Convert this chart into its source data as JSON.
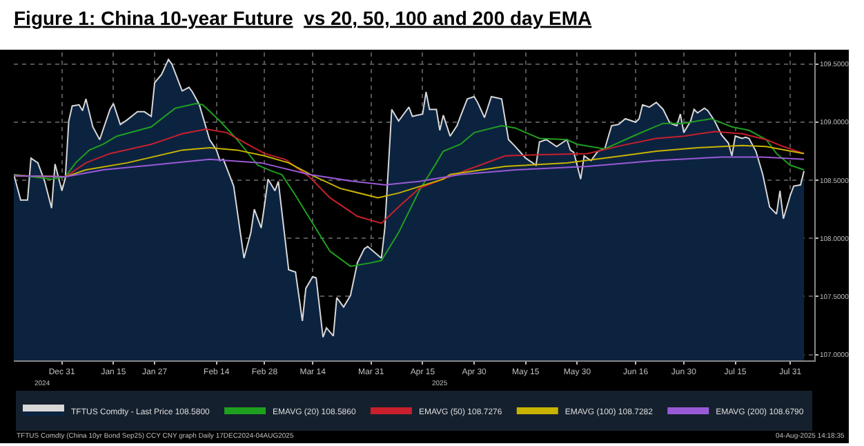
{
  "chart_data": {
    "type": "line",
    "title": "Figure 1: China 10-year Future  vs 20, 50, 100 and 200 day EMA",
    "annotations": [
      "2024",
      "2025",
      "TFTUS Comdty (China 10yr Bond Sep25) CCY CNY graph Daily 17DEC2024-04AUG2025",
      "04-Aug-2025 14:18:35"
    ],
    "xlim": [
      "2024-12-17",
      "2025-08-07"
    ],
    "xticks": [
      {
        "value": "2024-12-31",
        "label": "Dec 31"
      },
      {
        "value": "2025-01-15",
        "label": "Jan 15"
      },
      {
        "value": "2025-01-27",
        "label": "Jan 27"
      },
      {
        "value": "2025-02-14",
        "label": "Feb 14"
      },
      {
        "value": "2025-02-28",
        "label": "Feb 28"
      },
      {
        "value": "2025-03-14",
        "label": "Mar 14"
      },
      {
        "value": "2025-03-31",
        "label": "Mar 31"
      },
      {
        "value": "2025-04-15",
        "label": "Apr 15"
      },
      {
        "value": "2025-04-30",
        "label": "Apr 30"
      },
      {
        "value": "2025-05-15",
        "label": "May 15"
      },
      {
        "value": "2025-05-30",
        "label": "May 30"
      },
      {
        "value": "2025-06-16",
        "label": "Jun 16"
      },
      {
        "value": "2025-06-30",
        "label": "Jun 30"
      },
      {
        "value": "2025-07-15",
        "label": "Jul 15"
      },
      {
        "value": "2025-07-31",
        "label": "Jul 31"
      }
    ],
    "ylim": [
      106.95,
      109.6
    ],
    "yticks": [
      {
        "value": 107,
        "label": "107.0000"
      },
      {
        "value": 107.5,
        "label": "107.5000"
      },
      {
        "value": 108,
        "label": "108.0000"
      },
      {
        "value": 108.5,
        "label": "108.5000"
      },
      {
        "value": 109,
        "label": "109.0000"
      },
      {
        "value": 109.5,
        "label": "109.5000"
      }
    ],
    "grid": true,
    "legend": "bottom",
    "marker": "none",
    "line_style": "solid",
    "series": [
      {
        "name": "TFTUS Comdty - Last Price 108.5800",
        "type": "area",
        "color": "#d8d8d8",
        "x": [
          "2024-12-17",
          "2024-12-19",
          "2024-12-21",
          "2024-12-22",
          "2024-12-24",
          "2024-12-26",
          "2024-12-28",
          "2024-12-29",
          "2024-12-31",
          "2025-01-01",
          "2025-01-02",
          "2025-01-03",
          "2025-01-05",
          "2025-01-06",
          "2025-01-07",
          "2025-01-09",
          "2025-01-11",
          "2025-01-14",
          "2025-01-15",
          "2025-01-17",
          "2025-01-19",
          "2025-01-22",
          "2025-01-24",
          "2025-01-26",
          "2025-01-27",
          "2025-01-29",
          "2025-01-31",
          "2025-02-01",
          "2025-02-04",
          "2025-02-06",
          "2025-02-07",
          "2025-02-09",
          "2025-02-12",
          "2025-02-14",
          "2025-02-15",
          "2025-02-16",
          "2025-02-19",
          "2025-02-22",
          "2025-02-24",
          "2025-02-25",
          "2025-02-27",
          "2025-02-28",
          "2025-03-01",
          "2025-03-03",
          "2025-03-04",
          "2025-03-07",
          "2025-03-09",
          "2025-03-11",
          "2025-03-12",
          "2025-03-14",
          "2025-03-15",
          "2025-03-17",
          "2025-03-18",
          "2025-03-20",
          "2025-03-21",
          "2025-03-23",
          "2025-03-25",
          "2025-03-27",
          "2025-03-29",
          "2025-03-30",
          "2025-04-01",
          "2025-04-03",
          "2025-04-04",
          "2025-04-06",
          "2025-04-08",
          "2025-04-11",
          "2025-04-12",
          "2025-04-15",
          "2025-04-16",
          "2025-04-17",
          "2025-04-19",
          "2025-04-20",
          "2025-04-21",
          "2025-04-23",
          "2025-04-25",
          "2025-04-26",
          "2025-04-28",
          "2025-04-30",
          "2025-05-01",
          "2025-05-03",
          "2025-05-05",
          "2025-05-08",
          "2025-05-10",
          "2025-05-12",
          "2025-05-15",
          "2025-05-18",
          "2025-05-19",
          "2025-05-21",
          "2025-05-24",
          "2025-05-27",
          "2025-05-28",
          "2025-05-29",
          "2025-05-31",
          "2025-06-01",
          "2025-06-03",
          "2025-06-05",
          "2025-06-07",
          "2025-06-09",
          "2025-06-11",
          "2025-06-13",
          "2025-06-16",
          "2025-06-17",
          "2025-06-18",
          "2025-06-20",
          "2025-06-22",
          "2025-06-24",
          "2025-06-26",
          "2025-06-28",
          "2025-06-29",
          "2025-06-30",
          "2025-07-02",
          "2025-07-03",
          "2025-07-04",
          "2025-07-06",
          "2025-07-07",
          "2025-07-09",
          "2025-07-11",
          "2025-07-13",
          "2025-07-14",
          "2025-07-15",
          "2025-07-17",
          "2025-07-18",
          "2025-07-19",
          "2025-07-21",
          "2025-07-23",
          "2025-07-25",
          "2025-07-27",
          "2025-07-28",
          "2025-07-29",
          "2025-07-31",
          "2025-08-01",
          "2025-08-03",
          "2025-08-04"
        ],
        "values": [
          108.55,
          108.33,
          108.33,
          108.69,
          108.65,
          108.49,
          108.26,
          108.64,
          108.41,
          108.52,
          109.01,
          109.14,
          109.15,
          109.1,
          109.2,
          108.96,
          108.85,
          109.11,
          109.16,
          108.98,
          109.02,
          109.09,
          109.09,
          109.05,
          109.34,
          109.41,
          109.54,
          109.5,
          109.27,
          109.3,
          109.26,
          109.15,
          108.85,
          108.76,
          108.67,
          108.68,
          108.45,
          107.83,
          108.05,
          108.25,
          108.09,
          108.29,
          108.51,
          108.41,
          108.49,
          107.73,
          107.71,
          107.29,
          107.57,
          107.67,
          107.66,
          107.15,
          107.23,
          107.16,
          107.49,
          107.41,
          107.51,
          107.79,
          107.91,
          107.93,
          107.88,
          107.83,
          108.09,
          109.11,
          109.01,
          109.13,
          109.05,
          109.07,
          109.26,
          109.11,
          109.11,
          108.93,
          109.06,
          108.88,
          108.97,
          109.05,
          109.2,
          109.22,
          109.17,
          109.04,
          109.22,
          109.2,
          108.85,
          108.79,
          108.69,
          108.63,
          108.83,
          108.85,
          108.79,
          108.85,
          108.76,
          108.74,
          108.51,
          108.71,
          108.67,
          108.75,
          108.77,
          108.97,
          108.98,
          109.03,
          109.0,
          109.03,
          109.15,
          109.13,
          109.17,
          109.11,
          108.99,
          108.97,
          109.07,
          108.91,
          109.01,
          109.11,
          109.08,
          109.12,
          109.1,
          109.01,
          108.89,
          108.82,
          108.71,
          108.88,
          108.86,
          108.87,
          108.86,
          108.75,
          108.55,
          108.27,
          108.21,
          108.41,
          108.17,
          108.37,
          108.45,
          108.46,
          108.58
        ]
      },
      {
        "name": "EMAVG (20) 108.5860",
        "color": "#1fa01f",
        "x": [
          "2024-12-17",
          "2024-12-28",
          "2025-01-01",
          "2025-01-04",
          "2025-01-08",
          "2025-01-12",
          "2025-01-16",
          "2025-01-26",
          "2025-02-02",
          "2025-02-08",
          "2025-02-10",
          "2025-02-15",
          "2025-02-20",
          "2025-02-26",
          "2025-03-02",
          "2025-03-05",
          "2025-03-09",
          "2025-03-14",
          "2025-03-19",
          "2025-03-25",
          "2025-03-31",
          "2025-04-03",
          "2025-04-08",
          "2025-04-14",
          "2025-04-19",
          "2025-04-21",
          "2025-04-26",
          "2025-04-30",
          "2025-05-08",
          "2025-05-12",
          "2025-05-19",
          "2025-05-27",
          "2025-05-30",
          "2025-06-07",
          "2025-06-16",
          "2025-06-24",
          "2025-06-30",
          "2025-07-08",
          "2025-07-14",
          "2025-07-19",
          "2025-07-24",
          "2025-07-27",
          "2025-07-31",
          "2025-08-04"
        ],
        "values": [
          108.55,
          108.51,
          108.53,
          108.65,
          108.76,
          108.81,
          108.88,
          108.96,
          109.12,
          109.16,
          109.15,
          109.01,
          108.85,
          108.63,
          108.58,
          108.55,
          108.37,
          108.13,
          107.89,
          107.76,
          107.79,
          107.81,
          108.05,
          108.41,
          108.65,
          108.75,
          108.81,
          108.91,
          108.97,
          108.95,
          108.86,
          108.85,
          108.81,
          108.77,
          108.89,
          108.99,
          108.99,
          109.03,
          108.96,
          108.93,
          108.85,
          108.73,
          108.63,
          108.59
        ]
      },
      {
        "name": "EMAVG (50) 108.7276",
        "color": "#c8202c",
        "x": [
          "2024-12-17",
          "2025-01-01",
          "2025-01-07",
          "2025-01-14",
          "2025-01-26",
          "2025-02-04",
          "2025-02-11",
          "2025-02-17",
          "2025-02-23",
          "2025-02-28",
          "2025-03-06",
          "2025-03-13",
          "2025-03-19",
          "2025-03-27",
          "2025-04-03",
          "2025-04-08",
          "2025-04-14",
          "2025-04-21",
          "2025-04-28",
          "2025-05-09",
          "2025-05-20",
          "2025-06-02",
          "2025-06-12",
          "2025-06-22",
          "2025-06-30",
          "2025-07-09",
          "2025-07-17",
          "2025-07-24",
          "2025-07-29",
          "2025-08-04"
        ],
        "values": [
          108.54,
          108.53,
          108.65,
          108.73,
          108.81,
          108.9,
          108.94,
          108.91,
          108.81,
          108.73,
          108.68,
          108.53,
          108.35,
          108.19,
          108.13,
          108.27,
          108.43,
          108.51,
          108.59,
          108.71,
          108.72,
          108.73,
          108.8,
          108.86,
          108.88,
          108.92,
          108.9,
          108.85,
          108.79,
          108.73
        ]
      },
      {
        "name": "EMAVG (100) 108.7282",
        "color": "#c8b400",
        "x": [
          "2024-12-17",
          "2025-01-01",
          "2025-01-07",
          "2025-01-19",
          "2025-02-04",
          "2025-02-12",
          "2025-02-20",
          "2025-02-28",
          "2025-03-07",
          "2025-03-14",
          "2025-03-22",
          "2025-04-02",
          "2025-04-08",
          "2025-04-21",
          "2025-04-23",
          "2025-05-09",
          "2025-05-27",
          "2025-06-12",
          "2025-06-22",
          "2025-07-04",
          "2025-07-17",
          "2025-07-24",
          "2025-08-04"
        ],
        "values": [
          108.54,
          108.53,
          108.59,
          108.65,
          108.76,
          108.78,
          108.76,
          108.71,
          108.65,
          108.54,
          108.43,
          108.35,
          108.39,
          108.51,
          108.55,
          108.62,
          108.65,
          108.71,
          108.75,
          108.78,
          108.8,
          108.79,
          108.73
        ]
      },
      {
        "name": "EMAVG (200) 108.6790",
        "color": "#9a5ad8",
        "x": [
          "2024-12-17",
          "2025-01-01",
          "2025-01-12",
          "2025-01-26",
          "2025-02-12",
          "2025-02-27",
          "2025-03-13",
          "2025-03-26",
          "2025-04-04",
          "2025-04-14",
          "2025-04-26",
          "2025-05-12",
          "2025-06-02",
          "2025-06-22",
          "2025-07-11",
          "2025-07-23",
          "2025-08-04"
        ],
        "values": [
          108.54,
          108.53,
          108.59,
          108.63,
          108.68,
          108.65,
          108.55,
          108.49,
          108.46,
          108.49,
          108.55,
          108.59,
          108.62,
          108.67,
          108.7,
          108.7,
          108.68
        ]
      }
    ]
  }
}
